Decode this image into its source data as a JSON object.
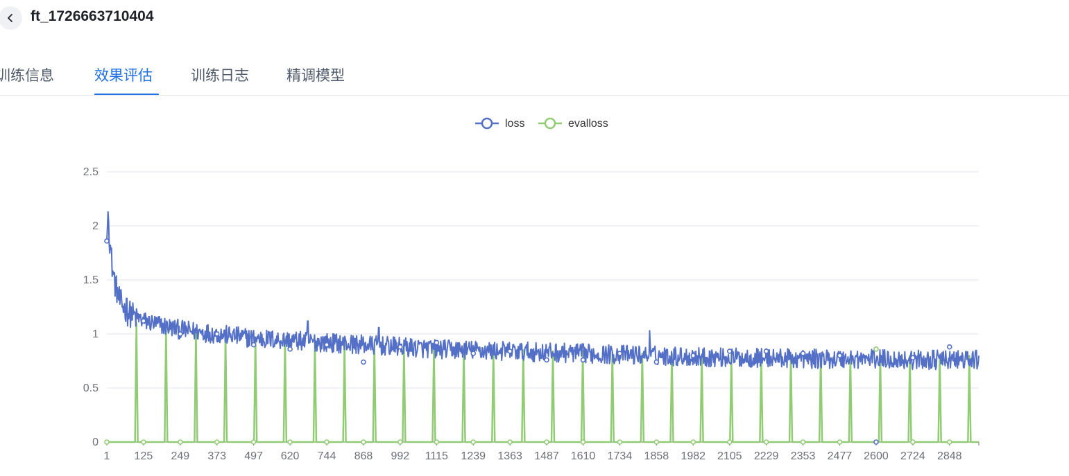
{
  "header": {
    "back_icon": "chevron-left-icon",
    "title": "ft_1726663710404"
  },
  "tabs": [
    {
      "label": "训练信息",
      "active": false
    },
    {
      "label": "效果评估",
      "active": true
    },
    {
      "label": "训练日志",
      "active": false
    },
    {
      "label": "精调模型",
      "active": false
    }
  ],
  "colors": {
    "accent": "#1f6fe5",
    "loss": "#5470c6",
    "evalloss": "#91cc75"
  },
  "chart_data": {
    "type": "line",
    "legend": [
      "loss",
      "evalloss"
    ],
    "legend_position": "top-center",
    "grid": true,
    "x_range": [
      1,
      2947
    ],
    "xticks": [
      1,
      125,
      249,
      373,
      497,
      620,
      744,
      868,
      992,
      1115,
      1239,
      1363,
      1487,
      1610,
      1734,
      1858,
      1982,
      2105,
      2229,
      2353,
      2477,
      2600,
      2724,
      2848
    ],
    "yticks": [
      "0",
      "0.5",
      "1",
      "1.5",
      "2",
      "2.5"
    ],
    "ylim": [
      0,
      2.5
    ],
    "series": [
      {
        "name": "loss",
        "color": "#5470c6",
        "noise_amplitude": 0.09,
        "trend": [
          [
            1,
            1.86
          ],
          [
            5,
            2.13
          ],
          [
            10,
            1.9
          ],
          [
            20,
            1.6
          ],
          [
            30,
            1.45
          ],
          [
            45,
            1.3
          ],
          [
            70,
            1.2
          ],
          [
            125,
            1.12
          ],
          [
            249,
            1.04
          ],
          [
            373,
            1.0
          ],
          [
            497,
            0.96
          ],
          [
            620,
            0.94
          ],
          [
            744,
            0.92
          ],
          [
            868,
            0.9
          ],
          [
            992,
            0.88
          ],
          [
            1115,
            0.86
          ],
          [
            1239,
            0.85
          ],
          [
            1363,
            0.84
          ],
          [
            1487,
            0.83
          ],
          [
            1610,
            0.82
          ],
          [
            1734,
            0.81
          ],
          [
            1858,
            0.8
          ],
          [
            1982,
            0.79
          ],
          [
            2105,
            0.78
          ],
          [
            2229,
            0.78
          ],
          [
            2353,
            0.77
          ],
          [
            2477,
            0.77
          ],
          [
            2600,
            0.77
          ],
          [
            2724,
            0.76
          ],
          [
            2848,
            0.76
          ],
          [
            2947,
            0.76
          ]
        ],
        "spikes": [
          [
            68,
            1.33
          ],
          [
            680,
            1.12
          ],
          [
            920,
            1.06
          ],
          [
            1835,
            1.03
          ]
        ],
        "markers": [
          [
            1,
            1.86
          ],
          [
            125,
            1.12
          ],
          [
            249,
            1.0
          ],
          [
            373,
            1.0
          ],
          [
            497,
            0.9
          ],
          [
            620,
            0.86
          ],
          [
            744,
            0.9
          ],
          [
            868,
            0.74
          ],
          [
            992,
            0.88
          ],
          [
            1115,
            0.92
          ],
          [
            1239,
            0.82
          ],
          [
            1363,
            0.84
          ],
          [
            1487,
            0.76
          ],
          [
            1610,
            0.76
          ],
          [
            1734,
            0.82
          ],
          [
            1858,
            0.74
          ],
          [
            1982,
            0.8
          ],
          [
            2105,
            0.84
          ],
          [
            2229,
            0.84
          ],
          [
            2353,
            0.82
          ],
          [
            2477,
            0.8
          ],
          [
            2600,
            0.0
          ],
          [
            2724,
            0.78
          ],
          [
            2848,
            0.88
          ]
        ]
      },
      {
        "name": "evalloss",
        "color": "#91cc75",
        "pattern": "zero baseline with periodic eval spikes",
        "spike_values": [
          [
            101,
            1.1
          ],
          [
            201,
            1.05
          ],
          [
            302,
            1.02
          ],
          [
            402,
            1.0
          ],
          [
            503,
            0.97
          ],
          [
            603,
            0.95
          ],
          [
            704,
            0.93
          ],
          [
            804,
            0.9
          ],
          [
            905,
            0.9
          ],
          [
            1005,
            0.88
          ],
          [
            1106,
            0.87
          ],
          [
            1207,
            0.86
          ],
          [
            1307,
            0.85
          ],
          [
            1408,
            0.85
          ],
          [
            1508,
            0.84
          ],
          [
            1609,
            0.84
          ],
          [
            1709,
            0.83
          ],
          [
            1810,
            0.82
          ],
          [
            1910,
            0.82
          ],
          [
            2011,
            0.81
          ],
          [
            2111,
            0.81
          ],
          [
            2212,
            0.8
          ],
          [
            2312,
            0.8
          ],
          [
            2413,
            0.8
          ],
          [
            2513,
            0.8
          ],
          [
            2614,
            0.8
          ],
          [
            2714,
            0.8
          ],
          [
            2815,
            0.8
          ],
          [
            2915,
            0.8
          ]
        ],
        "markers": [
          [
            1,
            0
          ],
          [
            125,
            0
          ],
          [
            249,
            0
          ],
          [
            373,
            0
          ],
          [
            497,
            0
          ],
          [
            620,
            0
          ],
          [
            744,
            0
          ],
          [
            868,
            0
          ],
          [
            992,
            0
          ],
          [
            1115,
            0
          ],
          [
            1239,
            0
          ],
          [
            1363,
            0
          ],
          [
            1487,
            0
          ],
          [
            1610,
            0
          ],
          [
            1734,
            0
          ],
          [
            1858,
            0
          ],
          [
            1982,
            0
          ],
          [
            2105,
            0
          ],
          [
            2229,
            0
          ],
          [
            2353,
            0
          ],
          [
            2477,
            0
          ],
          [
            2600,
            0.86
          ],
          [
            2724,
            0
          ],
          [
            2848,
            0
          ]
        ]
      }
    ]
  }
}
